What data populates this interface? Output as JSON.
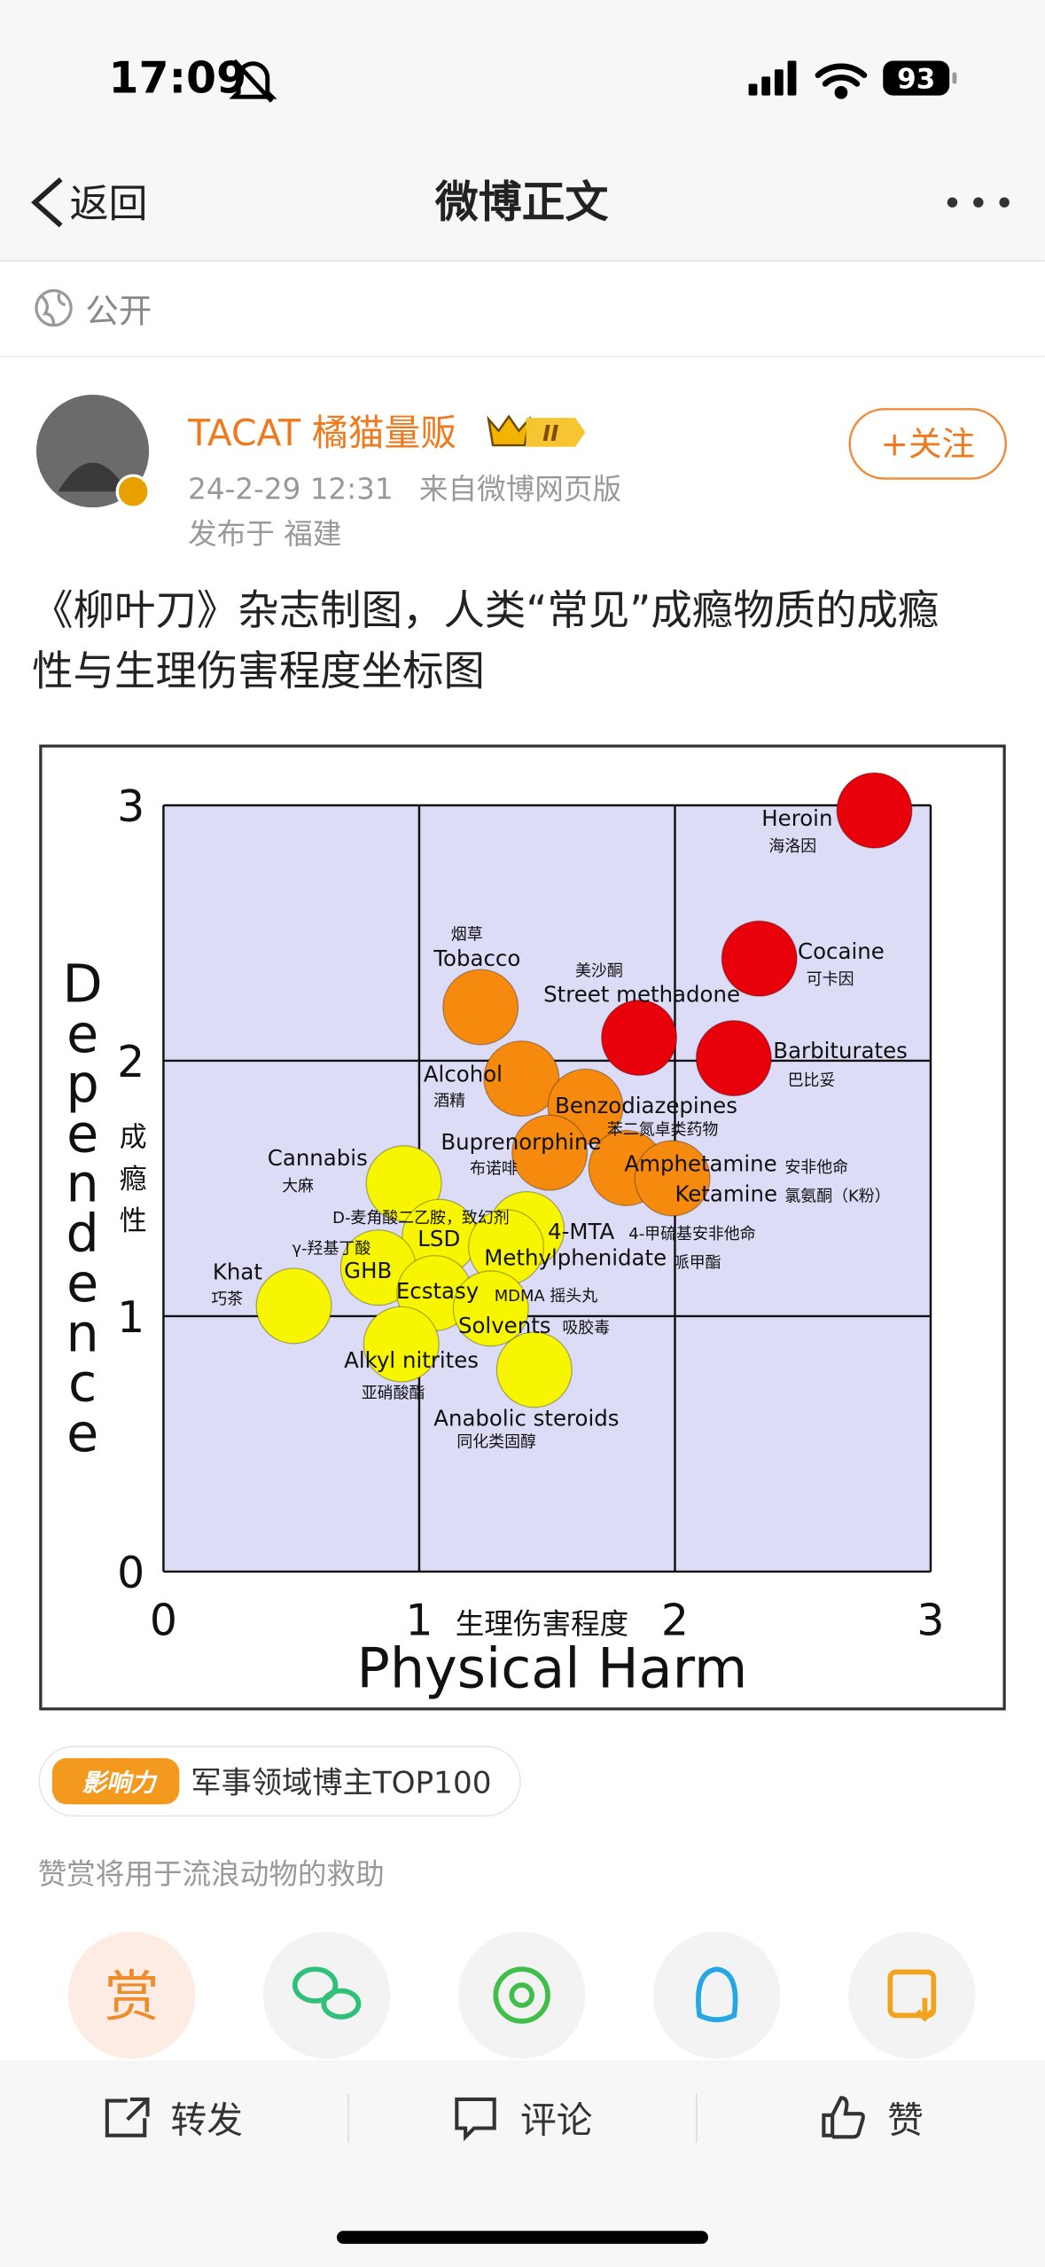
{
  "status_bar": {
    "time": "17:09",
    "battery": "93"
  },
  "nav": {
    "back": "返回",
    "title": "微博正文"
  },
  "visibility": "公开",
  "post": {
    "author": "TACAT 橘猫量贩",
    "badge": "II",
    "time": "24-2-29 12:31",
    "source": "来自微博网页版",
    "location": "发布于 福建",
    "follow": "+关注",
    "text": [
      "《柳叶刀》杂志制图，人类“常见”成瘾物质的成瘾",
      "性与生理伤害程度坐标图"
    ]
  },
  "chart_data": {
    "type": "scatter",
    "xlabel": "Physical Harm",
    "xlabel_cn": "生理伤害程度",
    "ylabel": "Dependence",
    "ylabel_cn": "成瘾性",
    "xlim": [
      0,
      3
    ],
    "ylim": [
      0,
      3
    ],
    "xticks": [
      0,
      1,
      2,
      3
    ],
    "yticks": [
      0,
      1,
      2,
      3
    ],
    "grid": true,
    "points": [
      {
        "name": "Heroin",
        "name_cn": "海洛因",
        "x": 2.78,
        "y": 2.98,
        "color": "#e8000b"
      },
      {
        "name": "Cocaine",
        "name_cn": "可卡因",
        "x": 2.33,
        "y": 2.4,
        "color": "#e8000b"
      },
      {
        "name": "Street methadone",
        "name_cn": "美沙酮",
        "x": 1.86,
        "y": 2.09,
        "color": "#e8000b"
      },
      {
        "name": "Barbiturates",
        "name_cn": "巴比妥",
        "x": 2.23,
        "y": 2.01,
        "color": "#e8000b"
      },
      {
        "name": "Tobacco",
        "name_cn": "烟草",
        "x": 1.24,
        "y": 2.21,
        "color": "#f58a0e"
      },
      {
        "name": "Alcohol",
        "name_cn": "酒精",
        "x": 1.4,
        "y": 1.93,
        "color": "#f58a0e"
      },
      {
        "name": "Benzodiazepines",
        "name_cn": "苯二氮卓类药物",
        "x": 1.65,
        "y": 1.82,
        "color": "#f58a0e"
      },
      {
        "name": "Buprenorphine",
        "name_cn": "布诺啡",
        "x": 1.51,
        "y": 1.64,
        "color": "#f58a0e"
      },
      {
        "name": "Amphetamine",
        "name_cn": "安非他命",
        "x": 1.81,
        "y": 1.58,
        "color": "#f58a0e"
      },
      {
        "name": "Ketamine",
        "name_cn": "氯氨酮（K粉）",
        "x": 1.99,
        "y": 1.54,
        "color": "#f58a0e"
      },
      {
        "name": "Cannabis",
        "name_cn": "大麻",
        "x": 0.94,
        "y": 1.52,
        "color": "#f8f500"
      },
      {
        "name": "LSD",
        "name_cn": "D-麦角酸二乙胺，致幻剂",
        "x": 1.08,
        "y": 1.31,
        "color": "#f8f500"
      },
      {
        "name": "GHB",
        "name_cn": "γ-羟基丁酸",
        "x": 0.84,
        "y": 1.19,
        "color": "#f8f500"
      },
      {
        "name": "Ecstasy",
        "name_cn": "MDMA 摇头丸",
        "x": 1.06,
        "y": 1.09,
        "color": "#f8f500"
      },
      {
        "name": "4-MTA",
        "name_cn": "4-甲硫基安非他命",
        "x": 1.42,
        "y": 1.34,
        "color": "#f8f500"
      },
      {
        "name": "Methylphenidate",
        "name_cn": "哌甲酯",
        "x": 1.34,
        "y": 1.27,
        "color": "#f8f500"
      },
      {
        "name": "Solvents",
        "name_cn": "吸胶毒",
        "x": 1.28,
        "y": 1.03,
        "color": "#f8f500"
      },
      {
        "name": "Khat",
        "name_cn": "巧茶",
        "x": 0.51,
        "y": 1.04,
        "color": "#f8f500"
      },
      {
        "name": "Alkyl nitrites",
        "name_cn": "亚硝酸酯",
        "x": 0.93,
        "y": 0.89,
        "color": "#f8f500"
      },
      {
        "name": "Anabolic steroids",
        "name_cn": "同化类固醇",
        "x": 1.45,
        "y": 0.79,
        "color": "#f8f500"
      }
    ]
  },
  "influence": {
    "badge": "影响力",
    "text": "军事领域博主TOP100"
  },
  "reward_note": "赞赏将用于流浪动物的救助",
  "reward_icon": "赏",
  "actions": [
    "转发",
    "评论",
    "赞"
  ]
}
